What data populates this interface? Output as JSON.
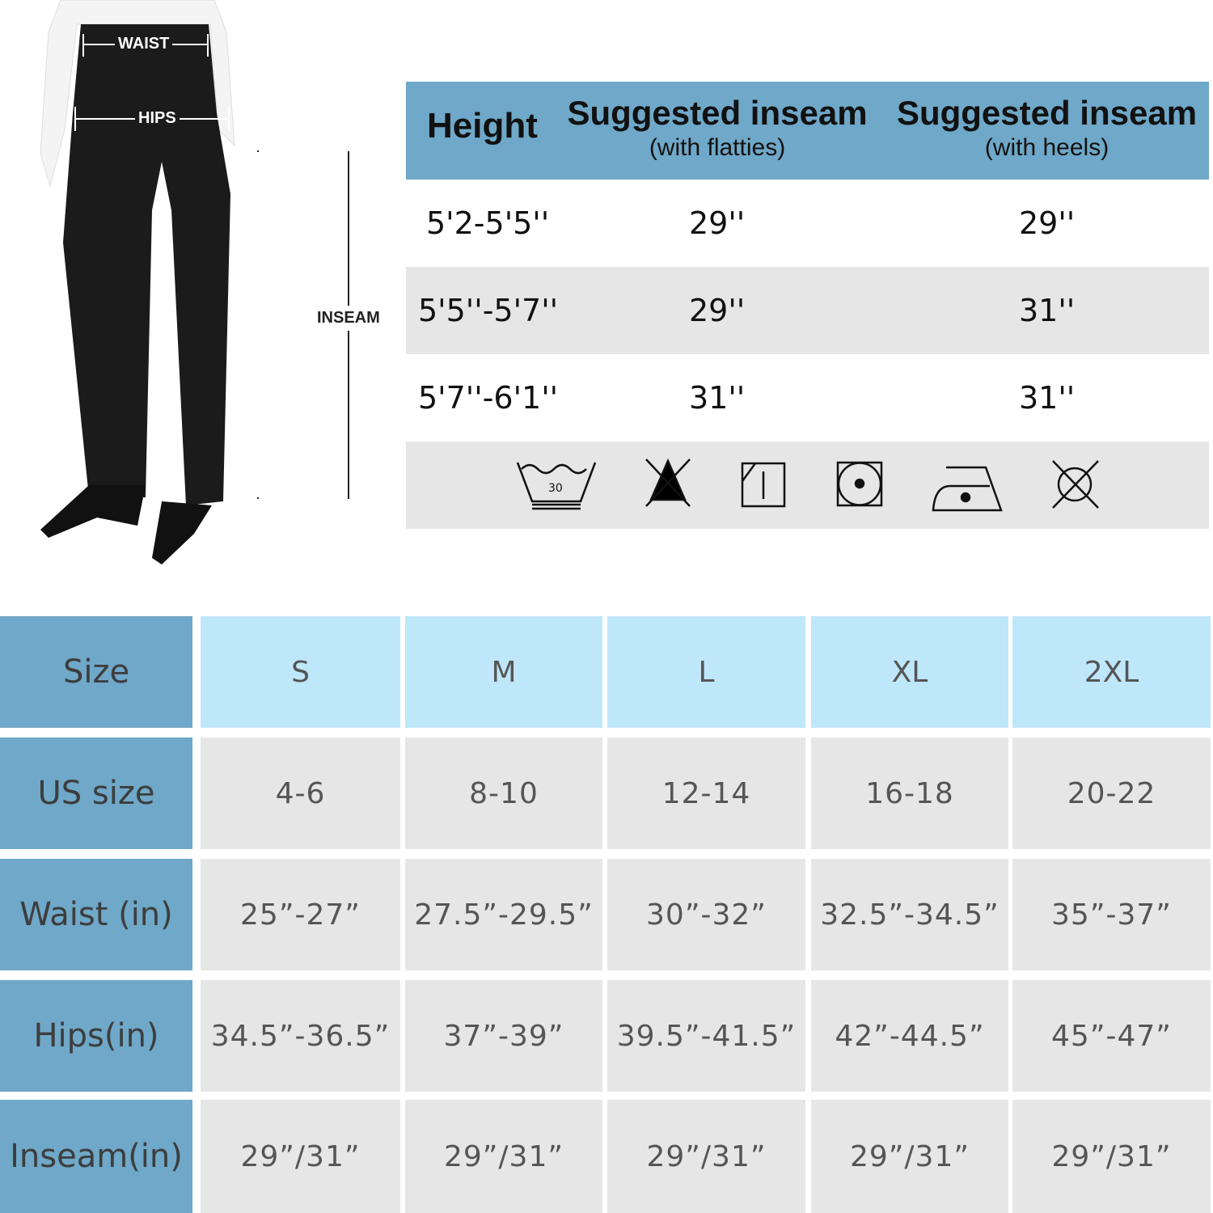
{
  "figure": {
    "waist_label": "WAIST",
    "hips_label": "HIPS",
    "inseam_label": "INSEAM"
  },
  "inseam_table": {
    "headers": [
      {
        "title": "Height",
        "sub": ""
      },
      {
        "title": "Suggested inseam",
        "sub": "(with flatties)"
      },
      {
        "title": "Suggested inseam",
        "sub": "(with heels)"
      }
    ],
    "rows": [
      [
        "5'2-5'5''",
        "29''",
        "29''"
      ],
      [
        "5'5''-5'7''",
        "29''",
        "31''"
      ],
      [
        "5'7''-6'1''",
        "31''",
        "31''"
      ]
    ],
    "care_icons": [
      "wash-30-gentle-icon",
      "do-not-bleach-icon",
      "line-dry-shade-icon",
      "tumble-dry-low-icon",
      "iron-low-icon",
      "do-not-dry-clean-icon"
    ],
    "wash_temp": "30"
  },
  "size_table": {
    "rows": [
      {
        "label": "Size",
        "values": [
          "S",
          "M",
          "L",
          "XL",
          "2XL"
        ]
      },
      {
        "label": "US size",
        "values": [
          "4-6",
          "8-10",
          "12-14",
          "16-18",
          "20-22"
        ]
      },
      {
        "label": "Waist (in)",
        "values": [
          "25”-27”",
          "27.5”-29.5”",
          "30”-32”",
          "32.5”-34.5”",
          "35”-37”"
        ]
      },
      {
        "label": "Hips(in)",
        "values": [
          "34.5”-36.5”",
          "37”-39”",
          "39.5”-41.5”",
          "42”-44.5”",
          "45”-47”"
        ]
      },
      {
        "label": "Inseam(in)",
        "values": [
          "29”/31”",
          "29”/31”",
          "29”/31”",
          "29”/31”",
          "29”/31”"
        ]
      }
    ]
  },
  "colors": {
    "header_blue": "#6fa8c8",
    "size_blue": "#bfe7fa",
    "row_grey": "#e6e6e6"
  }
}
